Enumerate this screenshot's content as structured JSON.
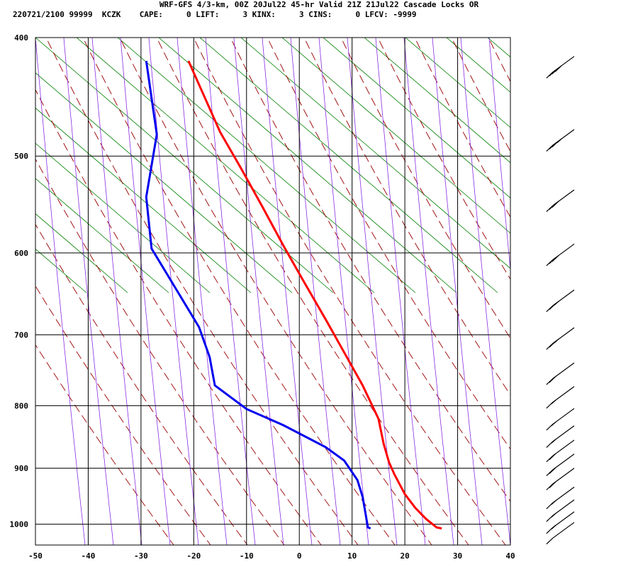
{
  "header": {
    "title": "WRF-GFS 4/3-km, 00Z 20Jul22 45-hr Valid 21Z 21Jul22 Cascade Locks OR",
    "stats": "220721/2100 99999  KCZK    CAPE:     0 LIFT:     3 KINX:     3 CINS:     0 LFCV: -9999"
  },
  "colors": {
    "temperature": "#ff0000",
    "dewpoint": "#0000ee",
    "dry_adiabat": "#008000",
    "moist_adiabat": "#990000",
    "mixing_ratio": "#8a2be2",
    "grid": "#000000"
  },
  "chart_data": {
    "type": "line",
    "title": "",
    "xlabel": "",
    "ylabel": "",
    "x_ticks": [
      "-50",
      "-40",
      "-30",
      "-20",
      "-10",
      "0",
      "10",
      "20",
      "30",
      "40"
    ],
    "p_ticks": [
      "400",
      "500",
      "600",
      "700",
      "800",
      "900",
      "1000"
    ],
    "xlim": [
      -50,
      40
    ],
    "plim": [
      400,
      1040
    ],
    "y_scale": "log-pressure",
    "grid": true,
    "series": [
      {
        "key": "temperature",
        "points": [
          [
            27,
            1008
          ],
          [
            26,
            1006
          ],
          [
            24,
            990
          ],
          [
            22,
            970
          ],
          [
            20,
            945
          ],
          [
            18,
            910
          ],
          [
            17,
            890
          ],
          [
            16,
            860
          ],
          [
            15,
            820
          ],
          [
            12,
            770
          ],
          [
            9,
            730
          ],
          [
            5,
            680
          ],
          [
            1,
            635
          ],
          [
            -3,
            592
          ],
          [
            -7,
            550
          ],
          [
            -11,
            512
          ],
          [
            -15,
            478
          ],
          [
            -21,
            418
          ]
        ]
      },
      {
        "key": "dewpoint",
        "points": [
          [
            13.5,
            1008
          ],
          [
            13,
            1006
          ],
          [
            12,
            950
          ],
          [
            11,
            920
          ],
          [
            8.5,
            887
          ],
          [
            5,
            865
          ],
          [
            -3,
            830
          ],
          [
            -10,
            805
          ],
          [
            -16,
            770
          ],
          [
            -17,
            730
          ],
          [
            -19,
            690
          ],
          [
            -28,
            595
          ],
          [
            -29,
            540
          ],
          [
            -27,
            480
          ],
          [
            -29,
            418
          ]
        ]
      }
    ]
  },
  "wind_barbs": [
    {
      "p": 420,
      "speed_kt": 40,
      "dir_deg": 230
    },
    {
      "p": 482,
      "speed_kt": 35,
      "dir_deg": 235
    },
    {
      "p": 540,
      "speed_kt": 30,
      "dir_deg": 235
    },
    {
      "p": 598,
      "speed_kt": 30,
      "dir_deg": 235
    },
    {
      "p": 652,
      "speed_kt": 25,
      "dir_deg": 240
    },
    {
      "p": 700,
      "speed_kt": 25,
      "dir_deg": 240
    },
    {
      "p": 748,
      "speed_kt": 20,
      "dir_deg": 245
    },
    {
      "p": 782,
      "speed_kt": 15,
      "dir_deg": 245
    },
    {
      "p": 815,
      "speed_kt": 15,
      "dir_deg": 250
    },
    {
      "p": 842,
      "speed_kt": 15,
      "dir_deg": 255
    },
    {
      "p": 865,
      "speed_kt": 20,
      "dir_deg": 260
    },
    {
      "p": 888,
      "speed_kt": 20,
      "dir_deg": 262
    },
    {
      "p": 912,
      "speed_kt": 20,
      "dir_deg": 260
    },
    {
      "p": 945,
      "speed_kt": 15,
      "dir_deg": 245
    },
    {
      "p": 968,
      "speed_kt": 15,
      "dir_deg": 240
    },
    {
      "p": 990,
      "speed_kt": 15,
      "dir_deg": 235
    },
    {
      "p": 1010,
      "speed_kt": 10,
      "dir_deg": 230
    }
  ]
}
